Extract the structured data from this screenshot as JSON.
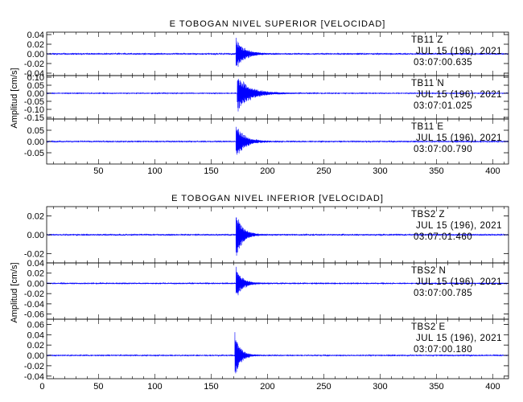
{
  "chart_data": [
    {
      "type": "line",
      "title": "E TOBOGAN NIVEL SUPERIOR [VELOCIDAD]",
      "ylabel": "Amplitud [cm/s]",
      "xlim": [
        4,
        414
      ],
      "x_ticks": [
        50,
        100,
        150,
        200,
        250,
        300,
        350,
        400
      ],
      "grid": false,
      "colors": {
        "trace": "#0000ff",
        "axes": "#000000",
        "background": "#ffffff"
      },
      "panels": [
        {
          "station": "TB11",
          "component": "Z",
          "date": "JUL 15 (196), 2021",
          "time": "03:07:00.635",
          "ylim": [
            -0.045,
            0.045
          ],
          "y_ticks": [
            "0.04",
            "0.02",
            "0.00",
            "-0.02",
            "-0.04"
          ],
          "y_tick_values": [
            0.04,
            0.02,
            0.0,
            -0.02,
            -0.04
          ],
          "noise": 0.0012,
          "onset": 172,
          "peak": 0.03,
          "decay": 6,
          "secondary_peak": 0.008,
          "secondary_decay": 15
        },
        {
          "station": "TB11",
          "component": "N",
          "date": "JUL 15 (196), 2021",
          "time": "03:07:01.025",
          "ylim": [
            -0.16,
            0.11
          ],
          "y_ticks": [
            "0.10",
            "0.05",
            "0.00",
            "-0.05",
            "-0.10",
            "-0.15"
          ],
          "y_tick_values": [
            0.1,
            0.05,
            0.0,
            -0.05,
            -0.1,
            -0.15
          ],
          "noise": 0.002,
          "onset": 173,
          "peak": 0.11,
          "decay": 9,
          "secondary_peak": 0.02,
          "secondary_decay": 25
        },
        {
          "station": "TB11",
          "component": "E",
          "date": "JUL 15 (196), 2021",
          "time": "03:07:00.790",
          "ylim": [
            -0.1,
            0.1
          ],
          "y_ticks": [
            "0.05",
            "0.00",
            "-0.05"
          ],
          "y_tick_values": [
            0.05,
            0.0,
            -0.05
          ],
          "noise": 0.002,
          "onset": 172,
          "peak": 0.08,
          "decay": 6,
          "secondary_peak": 0.012,
          "secondary_decay": 20
        }
      ]
    },
    {
      "type": "line",
      "title": "E TOBOGAN NIVEL INFERIOR [VELOCIDAD]",
      "ylabel": "Amplitud [cm/s]",
      "xlim": [
        4,
        414
      ],
      "x_ticks": [
        0,
        50,
        100,
        150,
        200,
        250,
        300,
        350,
        400
      ],
      "grid": false,
      "colors": {
        "trace": "#0000ff",
        "axes": "#000000",
        "background": "#ffffff"
      },
      "panels": [
        {
          "station": "TBS2",
          "component": "Z",
          "date": "JUL 15 (196), 2021",
          "time": "03:07:01.460",
          "ylim": [
            -0.03,
            0.03
          ],
          "y_ticks": [
            "0.02",
            "0.00",
            "-0.02"
          ],
          "y_tick_values": [
            0.02,
            0.0,
            -0.02
          ],
          "noise": 0.0006,
          "onset": 172,
          "peak": 0.024,
          "decay": 5,
          "secondary_peak": 0.004,
          "secondary_decay": 12
        },
        {
          "station": "TBS2",
          "component": "N",
          "date": "JUL 15 (196), 2021",
          "time": "03:07:00.785",
          "ylim": [
            -0.07,
            0.04
          ],
          "y_ticks": [
            "0.04",
            "0.02",
            "0.00",
            "-0.02",
            "-0.04",
            "-0.06"
          ],
          "y_tick_values": [
            0.04,
            0.02,
            0.0,
            -0.02,
            -0.04,
            -0.06
          ],
          "noise": 0.0008,
          "onset": 172,
          "peak": 0.03,
          "decay": 5,
          "secondary_peak": 0.005,
          "secondary_decay": 15
        },
        {
          "station": "TBS2",
          "component": "E",
          "date": "JUL 15 (196), 2021",
          "time": "03:07:00.180",
          "ylim": [
            -0.045,
            0.07
          ],
          "y_ticks": [
            "0.06",
            "0.04",
            "0.02",
            "0.00",
            "-0.02",
            "-0.04"
          ],
          "y_tick_values": [
            0.06,
            0.04,
            0.02,
            0.0,
            -0.02,
            -0.04
          ],
          "noise": 0.0008,
          "onset": 171,
          "peak": 0.05,
          "decay": 4,
          "secondary_peak": 0.005,
          "secondary_decay": 12
        }
      ]
    }
  ]
}
